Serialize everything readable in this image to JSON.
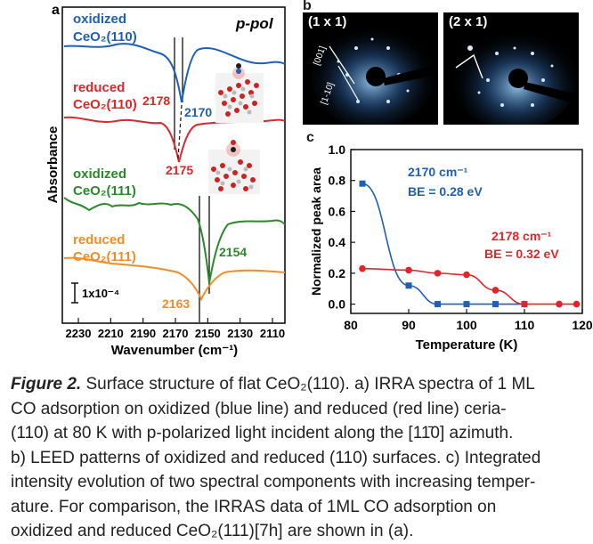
{
  "panel_a": {
    "letter": "a",
    "polarization": "p-pol",
    "ylabel": "Absorbance",
    "xlabel": "Wavenumber (cm⁻¹)",
    "scale_bar": "1x10⁻⁴",
    "xticks": [
      "2230",
      "2210",
      "2190",
      "2170",
      "2150",
      "2130",
      "2110"
    ],
    "spectra": [
      {
        "label_line1": "oxidized",
        "label_line2": "CeO₂(110)",
        "color": "#1f5fb5",
        "peak_label": "2170"
      },
      {
        "label_line1": "reduced",
        "label_line2": "CeO₂(110)",
        "color": "#e0262b",
        "peak_label": "2175",
        "extra_peak_label": "2178"
      },
      {
        "label_line1": "oxidized",
        "label_line2": "CeO₂(111)",
        "color": "#2a8a2a",
        "peak_label": "2154"
      },
      {
        "label_line1": "reduced",
        "label_line2": "CeO₂(111)",
        "color": "#f28c28",
        "peak_label": "2163"
      }
    ]
  },
  "panel_b": {
    "letter": "b",
    "left_label": "(1 x 1)",
    "right_label": "(2 x 1)",
    "dir1": "[001]",
    "dir2": "[1-10]"
  },
  "chart_data": {
    "type": "scatter",
    "letter": "c",
    "xlabel": "Temperature (K)",
    "ylabel": "Normalized peak area",
    "xlim": [
      80,
      120
    ],
    "ylim": [
      -0.06,
      1.0
    ],
    "xticks": [
      80,
      90,
      100,
      110,
      120
    ],
    "yticks": [
      "0.0",
      "0.2",
      "0.4",
      "0.6",
      "0.8",
      "1.0"
    ],
    "series": [
      {
        "name": "2170 cm⁻¹",
        "annotation": "BE = 0.28 eV",
        "color": "#1f5fb5",
        "marker": "square",
        "x": [
          82,
          90,
          95,
          100,
          105,
          110
        ],
        "y": [
          0.78,
          0.12,
          0.0,
          0.0,
          0.0,
          0.0
        ]
      },
      {
        "name": "2178 cm⁻¹",
        "annotation": "BE = 0.32 eV",
        "color": "#e0262b",
        "marker": "circle",
        "x": [
          82,
          90,
          95,
          100,
          105,
          110,
          116,
          119
        ],
        "y": [
          0.23,
          0.22,
          0.2,
          0.19,
          0.09,
          0.0,
          0.0,
          0.0
        ]
      }
    ]
  },
  "caption": {
    "figure_label": "Figure 2.",
    "line1": "Surface structure of flat CeO₂(110). a) IRRA spectra of 1 ML",
    "line2": "CO adsorption on oxidized (blue line) and reduced (red line) ceria-",
    "line3": "(110) at 80 K with p-polarized light incident along the [11̄0] azimuth.",
    "line4": "b) LEED patterns of oxidized and reduced (110) surfaces. c) Integrated",
    "line5": "intensity evolution of two spectral components with increasing temper-",
    "line6": "ature. For comparison, the IRRAS data of 1ML CO adsorption on",
    "line7": "oxidized and reduced CeO₂(111)[7h] are shown in (a)."
  }
}
